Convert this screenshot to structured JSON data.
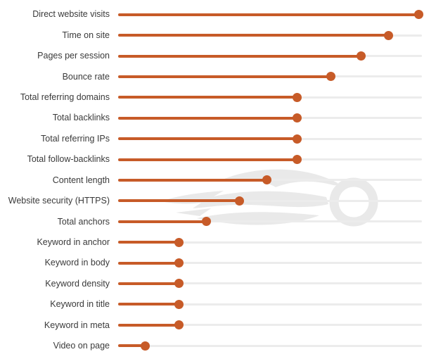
{
  "chart_data": {
    "type": "bar",
    "variant": "horizontal-lollipop",
    "title": "",
    "xlabel": "",
    "ylabel": "",
    "categories": [
      "Direct website visits",
      "Time on site",
      "Pages per session",
      "Bounce rate",
      "Total referring domains",
      "Total backlinks",
      "Total referring IPs",
      "Total follow-backlinks",
      "Content length",
      "Website security (HTTPS)",
      "Total anchors",
      "Keyword in anchor",
      "Keyword in body",
      "Keyword density",
      "Keyword in title",
      "Keyword in meta",
      "Video on page"
    ],
    "values": [
      0.99,
      0.89,
      0.8,
      0.7,
      0.59,
      0.59,
      0.59,
      0.59,
      0.49,
      0.4,
      0.29,
      0.2,
      0.2,
      0.2,
      0.2,
      0.2,
      0.09
    ],
    "value_note": "relative line length fraction of track (no numeric axis shown in image)",
    "xlim": [
      0,
      1
    ],
    "grid": false,
    "legend": false
  },
  "colors": {
    "accent": "#c75b28",
    "track": "#ececec",
    "label_text": "#3a3a3a",
    "watermark": "#e9e9e9",
    "background": "#ffffff"
  },
  "watermark": {
    "icon": "semrush-speeding-ball-logo"
  }
}
